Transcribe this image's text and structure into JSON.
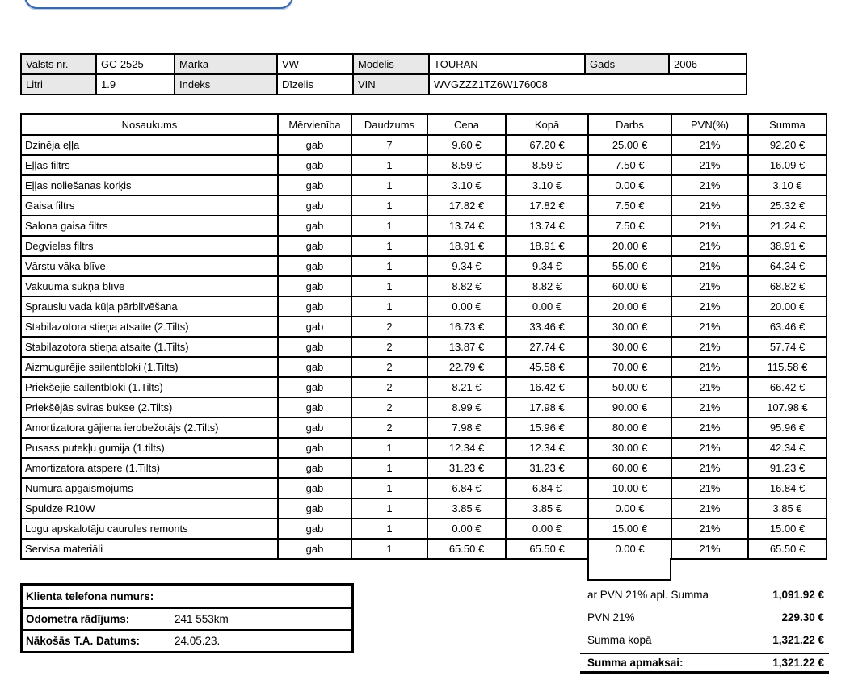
{
  "vehicle_info": {
    "rows": [
      {
        "cells": [
          {
            "kind": "label",
            "text": "Valsts nr."
          },
          {
            "kind": "value",
            "text": "GC-2525"
          },
          {
            "kind": "label",
            "text": "Marka"
          },
          {
            "kind": "value",
            "text": "VW"
          },
          {
            "kind": "label",
            "text": "Modelis"
          },
          {
            "kind": "value",
            "text": "TOURAN"
          },
          {
            "kind": "label",
            "text": "Gads"
          },
          {
            "kind": "value",
            "text": "2006"
          }
        ]
      },
      {
        "cells": [
          {
            "kind": "label",
            "text": "Litri"
          },
          {
            "kind": "value",
            "text": "1.9"
          },
          {
            "kind": "label",
            "text": "Indeks"
          },
          {
            "kind": "value",
            "text": "Dīzelis"
          },
          {
            "kind": "label",
            "text": "VIN"
          },
          {
            "kind": "value",
            "text": "WVGZZZ1TZ6W176008",
            "colspan": 3
          }
        ]
      }
    ]
  },
  "parts_table": {
    "headers": [
      "Nosaukums",
      "Mērvienība",
      "Daudzums",
      "Cena",
      "Kopā",
      "Darbs",
      "PVN(%)",
      "Summa"
    ],
    "rows": [
      [
        "Dzinēja eļļa",
        "gab",
        "7",
        "9.60 €",
        "67.20 €",
        "25.00 €",
        "21%",
        "92.20 €"
      ],
      [
        "Eļļas filtrs",
        "gab",
        "1",
        "8.59 €",
        "8.59 €",
        "7.50 €",
        "21%",
        "16.09 €"
      ],
      [
        "Eļļas noliešanas korķis",
        "gab",
        "1",
        "3.10 €",
        "3.10 €",
        "0.00 €",
        "21%",
        "3.10 €"
      ],
      [
        "Gaisa filtrs",
        "gab",
        "1",
        "17.82 €",
        "17.82 €",
        "7.50 €",
        "21%",
        "25.32 €"
      ],
      [
        "Salona gaisa filtrs",
        "gab",
        "1",
        "13.74 €",
        "13.74 €",
        "7.50 €",
        "21%",
        "21.24 €"
      ],
      [
        "Degvielas filtrs",
        "gab",
        "1",
        "18.91 €",
        "18.91 €",
        "20.00 €",
        "21%",
        "38.91 €"
      ],
      [
        "Vārstu vāka blīve",
        "gab",
        "1",
        "9.34 €",
        "9.34 €",
        "55.00 €",
        "21%",
        "64.34 €"
      ],
      [
        "Vakuuma sūkņa blīve",
        "gab",
        "1",
        "8.82 €",
        "8.82 €",
        "60.00 €",
        "21%",
        "68.82 €"
      ],
      [
        "Sprauslu vada kūļa pārblīvēšana",
        "gab",
        "1",
        "0.00 €",
        "0.00 €",
        "20.00 €",
        "21%",
        "20.00 €"
      ],
      [
        "Stabilazotora stieņa atsaite (2.Tilts)",
        "gab",
        "2",
        "16.73 €",
        "33.46 €",
        "30.00 €",
        "21%",
        "63.46 €"
      ],
      [
        "Stabilazotora stieņa atsaite (1.Tilts)",
        "gab",
        "2",
        "13.87 €",
        "27.74 €",
        "30.00 €",
        "21%",
        "57.74 €"
      ],
      [
        "Aizmugurējie sailentbloki (1.Tilts)",
        "gab",
        "2",
        "22.79 €",
        "45.58 €",
        "70.00 €",
        "21%",
        "115.58 €"
      ],
      [
        "Priekšējie sailentbloki (1.Tilts)",
        "gab",
        "2",
        "8.21 €",
        "16.42 €",
        "50.00 €",
        "21%",
        "66.42 €"
      ],
      [
        "Priekšējās sviras bukse (2.Tilts)",
        "gab",
        "2",
        "8.99 €",
        "17.98 €",
        "90.00 €",
        "21%",
        "107.98 €"
      ],
      [
        "Amortizatora gājiena ierobežotājs (2.Tilts)",
        "gab",
        "2",
        "7.98 €",
        "15.96 €",
        "80.00 €",
        "21%",
        "95.96 €"
      ],
      [
        "Pusass putekļu gumija (1.tilts)",
        "gab",
        "1",
        "12.34 €",
        "12.34 €",
        "30.00 €",
        "21%",
        "42.34 €"
      ],
      [
        "Amortizatora atspere (1.Tilts)",
        "gab",
        "1",
        "31.23 €",
        "31.23 €",
        "60.00 €",
        "21%",
        "91.23 €"
      ],
      [
        "Numura apgaismojums",
        "gab",
        "1",
        "6.84 €",
        "6.84 €",
        "10.00 €",
        "21%",
        "16.84 €"
      ],
      [
        "Spuldze R10W",
        "gab",
        "1",
        "3.85 €",
        "3.85 €",
        "0.00 €",
        "21%",
        "3.85 €"
      ],
      [
        "Logu apskalotāju caurules remonts",
        "gab",
        "1",
        "0.00 €",
        "0.00 €",
        "15.00 €",
        "21%",
        "15.00 €"
      ],
      [
        "Servisa materiāli",
        "gab",
        "1",
        "65.50 €",
        "65.50 €",
        "0.00 €",
        "21%",
        "65.50 €"
      ]
    ]
  },
  "client_info": {
    "rows": [
      {
        "label": "Klienta telefona numurs:",
        "value": ""
      },
      {
        "label": "Odometra rādījums:",
        "value": "241 553km"
      },
      {
        "label": "Nākošās T.A. Datums:",
        "value": "24.05.23."
      }
    ]
  },
  "totals": {
    "rows": [
      {
        "label": "ar PVN 21% apl. Summa",
        "value": "1,091.92 €"
      },
      {
        "label": "PVN 21%",
        "value": "229.30 €"
      },
      {
        "label": "Summa kopā",
        "value": "1,321.22 €"
      }
    ],
    "final": {
      "label": "Summa apmaksai:",
      "value": "1,321.22 €"
    }
  },
  "colors": {
    "border": "#000000",
    "label_background": "#e8e8e8",
    "logo_border": "#3a68a8",
    "logo_shadow": "#b9cfe8",
    "text": "#000000"
  }
}
